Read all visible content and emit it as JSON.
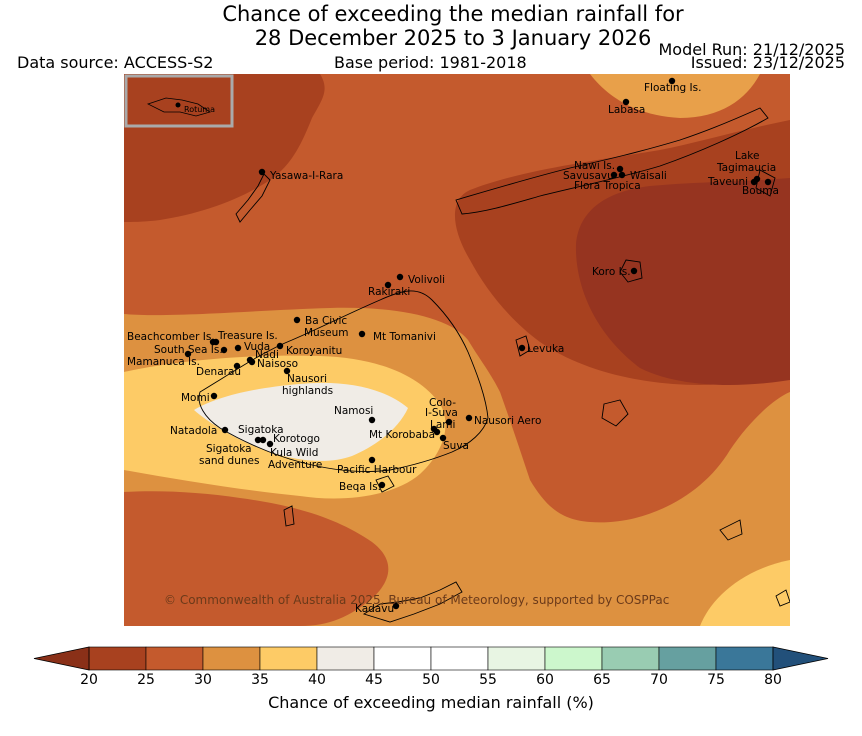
{
  "title": {
    "line1": "Chance of exceeding the median rainfall for",
    "line2": "28 December 2025 to 3 January 2026"
  },
  "header": {
    "data_source": "Data source: ACCESS-S2",
    "base_period": "Base period: 1981-2018",
    "model_run": "Model Run: 21/12/2025",
    "issued": "Issued: 23/12/2025"
  },
  "map": {
    "inset_label": "Rotuma",
    "copyright": "© Commonwealth of Australia 2025, Bureau of Meteorology, supported by COSPPac",
    "places": [
      {
        "name": "Floating Is."
      },
      {
        "name": "Labasa"
      },
      {
        "name": "Lake"
      },
      {
        "name": "Tagimaucia"
      },
      {
        "name": "Nawi Is."
      },
      {
        "name": "Savusavu"
      },
      {
        "name": "Waisali"
      },
      {
        "name": "Flora Tropica"
      },
      {
        "name": "Taveuni"
      },
      {
        "name": "Bouma"
      },
      {
        "name": "Yasawa-I-Rara"
      },
      {
        "name": "Volivoli"
      },
      {
        "name": "Rakiraki"
      },
      {
        "name": "Koro Is."
      },
      {
        "name": "Ba Civic"
      },
      {
        "name": "Museum"
      },
      {
        "name": "Mt Tomanivi"
      },
      {
        "name": "Beachcomber Is."
      },
      {
        "name": "Treasure Is."
      },
      {
        "name": "South Sea Is."
      },
      {
        "name": "Vuda"
      },
      {
        "name": "Koroyanitu"
      },
      {
        "name": "Nadi"
      },
      {
        "name": "Naisoso"
      },
      {
        "name": "Mamanuca Is."
      },
      {
        "name": "Denarau"
      },
      {
        "name": "Levuka"
      },
      {
        "name": "Nausori"
      },
      {
        "name": "highlands"
      },
      {
        "name": "Momi"
      },
      {
        "name": "Namosi"
      },
      {
        "name": "Colo-"
      },
      {
        "name": "I-Suva"
      },
      {
        "name": "Nausori Aero"
      },
      {
        "name": "Natadola"
      },
      {
        "name": "Sigatoka"
      },
      {
        "name": "Lami"
      },
      {
        "name": "Mt Korobaba"
      },
      {
        "name": "Korotogo"
      },
      {
        "name": "Suva"
      },
      {
        "name": "Sigatoka"
      },
      {
        "name": "sand dunes"
      },
      {
        "name": "Kula Wild"
      },
      {
        "name": "Adventure"
      },
      {
        "name": "Pacific Harbour"
      },
      {
        "name": "Beqa Is."
      },
      {
        "name": "Kadavu"
      }
    ]
  },
  "colorbar": {
    "label": "Chance of exceeding median rainfall (%)",
    "ticks": [
      "20",
      "25",
      "30",
      "35",
      "40",
      "45",
      "50",
      "55",
      "60",
      "65",
      "70",
      "75",
      "80"
    ],
    "colors": [
      "#a8411f",
      "#c45a2d",
      "#dd9140",
      "#fdcb66",
      "#f0ece6",
      "#ffffff",
      "#ffffff",
      "#e8f5e3",
      "#ccf7cc",
      "#99ccb2",
      "#66a0a0",
      "#3a7799"
    ],
    "under_color": "#8a3018",
    "over_color": "#22507a"
  }
}
